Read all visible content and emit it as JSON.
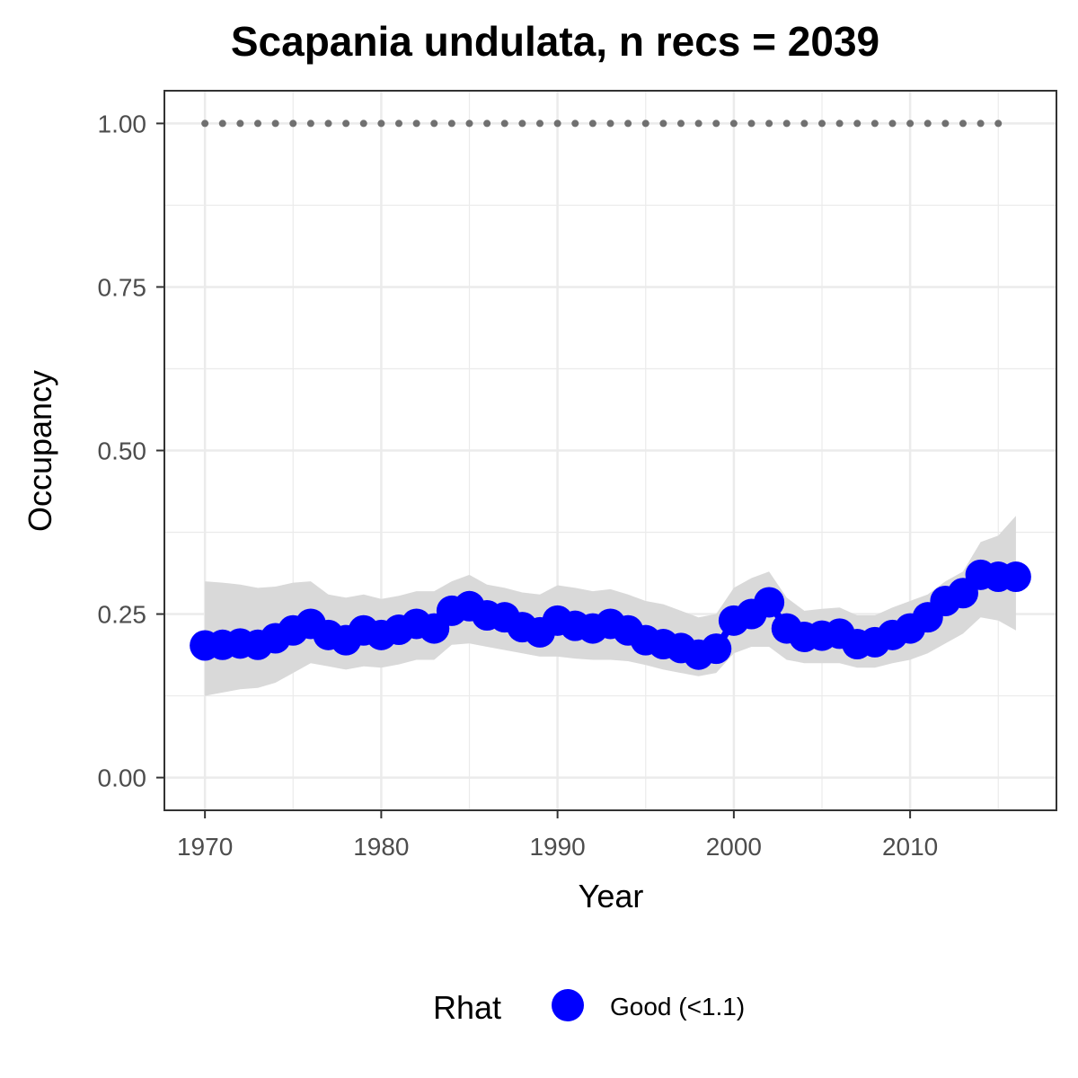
{
  "chart_data": {
    "type": "line",
    "title": "Scapania undulata, n recs = 2039",
    "xlabel": "Year",
    "ylabel": "Occupancy",
    "xlim": [
      1967.7,
      2018.3
    ],
    "ylim": [
      -0.05,
      1.05
    ],
    "x_ticks": [
      1970,
      1980,
      1990,
      2000,
      2010
    ],
    "x_tick_labels": [
      "1970",
      "1980",
      "1990",
      "2000",
      "2010"
    ],
    "y_ticks": [
      0,
      0.25,
      0.5,
      0.75,
      1.0
    ],
    "y_tick_labels": [
      "0.00",
      "0.25",
      "0.50",
      "0.75",
      "1.00"
    ],
    "grid": true,
    "legend": {
      "title": "Rhat",
      "position": "bottom",
      "entries": [
        {
          "label": "Good (<1.1)",
          "color": "#0000ff"
        }
      ]
    },
    "colors": {
      "points": "#0000ff",
      "ribbon": "#d9d9d9",
      "dotted_line": "#707070",
      "panel_border": "#333333",
      "grid": "#ebebeb"
    },
    "series": [
      {
        "name": "Occupancy",
        "x": [
          1970,
          1971,
          1972,
          1973,
          1974,
          1975,
          1976,
          1977,
          1978,
          1979,
          1980,
          1981,
          1982,
          1983,
          1984,
          1985,
          1986,
          1987,
          1988,
          1989,
          1990,
          1991,
          1992,
          1993,
          1994,
          1995,
          1996,
          1997,
          1998,
          1999,
          2000,
          2001,
          2002,
          2003,
          2004,
          2005,
          2006,
          2007,
          2008,
          2009,
          2010,
          2011,
          2012,
          2013,
          2014,
          2015,
          2016
        ],
        "y": [
          0.202,
          0.203,
          0.205,
          0.203,
          0.213,
          0.225,
          0.235,
          0.218,
          0.21,
          0.225,
          0.218,
          0.226,
          0.235,
          0.228,
          0.255,
          0.262,
          0.248,
          0.245,
          0.23,
          0.222,
          0.24,
          0.232,
          0.228,
          0.235,
          0.225,
          0.21,
          0.204,
          0.198,
          0.188,
          0.197,
          0.24,
          0.25,
          0.268,
          0.228,
          0.215,
          0.217,
          0.22,
          0.204,
          0.207,
          0.218,
          0.228,
          0.245,
          0.27,
          0.282,
          0.31,
          0.307,
          0.307
        ],
        "lower": [
          0.125,
          0.13,
          0.135,
          0.137,
          0.145,
          0.16,
          0.175,
          0.17,
          0.165,
          0.17,
          0.168,
          0.173,
          0.18,
          0.18,
          0.203,
          0.205,
          0.2,
          0.195,
          0.19,
          0.185,
          0.185,
          0.182,
          0.18,
          0.18,
          0.178,
          0.172,
          0.165,
          0.16,
          0.155,
          0.16,
          0.19,
          0.2,
          0.2,
          0.18,
          0.175,
          0.175,
          0.175,
          0.168,
          0.168,
          0.175,
          0.18,
          0.19,
          0.205,
          0.22,
          0.245,
          0.24,
          0.225
        ],
        "upper": [
          0.3,
          0.298,
          0.295,
          0.29,
          0.292,
          0.298,
          0.3,
          0.28,
          0.275,
          0.28,
          0.273,
          0.278,
          0.285,
          0.285,
          0.3,
          0.31,
          0.295,
          0.29,
          0.283,
          0.28,
          0.294,
          0.29,
          0.285,
          0.288,
          0.28,
          0.27,
          0.265,
          0.255,
          0.245,
          0.25,
          0.29,
          0.305,
          0.315,
          0.275,
          0.255,
          0.258,
          0.26,
          0.248,
          0.248,
          0.26,
          0.27,
          0.28,
          0.3,
          0.315,
          0.36,
          0.37,
          0.4
        ]
      },
      {
        "name": "Recording years",
        "x": [
          1970,
          1971,
          1972,
          1973,
          1974,
          1975,
          1976,
          1977,
          1978,
          1979,
          1980,
          1981,
          1982,
          1983,
          1984,
          1985,
          1986,
          1987,
          1988,
          1989,
          1990,
          1991,
          1992,
          1993,
          1994,
          1995,
          1996,
          1997,
          1998,
          1999,
          2000,
          2001,
          2002,
          2003,
          2004,
          2005,
          2006,
          2007,
          2008,
          2009,
          2010,
          2011,
          2012,
          2013,
          2014,
          2015
        ],
        "y": [
          1,
          1,
          1,
          1,
          1,
          1,
          1,
          1,
          1,
          1,
          1,
          1,
          1,
          1,
          1,
          1,
          1,
          1,
          1,
          1,
          1,
          1,
          1,
          1,
          1,
          1,
          1,
          1,
          1,
          1,
          1,
          1,
          1,
          1,
          1,
          1,
          1,
          1,
          1,
          1,
          1,
          1,
          1,
          1,
          1,
          1
        ]
      }
    ]
  }
}
